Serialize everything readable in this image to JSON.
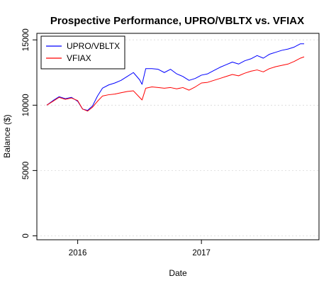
{
  "chart_data": {
    "type": "line",
    "title": "Prospective Performance, UPRO/VBLTX vs. VFIAX",
    "xlabel": "Date",
    "ylabel": "Balance ($)",
    "x_unit": "year",
    "xlim": [
      2015.67,
      2017.95
    ],
    "ylim": [
      -300,
      15500
    ],
    "x_ticks": [
      2016,
      2017
    ],
    "x_tick_labels": [
      "2016",
      "2017"
    ],
    "y_ticks": [
      0,
      5000,
      10000,
      15000
    ],
    "y_tick_labels": [
      "0",
      "5000",
      "10000",
      "15000"
    ],
    "grid": true,
    "legend_position": "top-left",
    "series": [
      {
        "name": "UPRO/VBLTX",
        "color": "#0000ff",
        "x": [
          2015.75,
          2015.8,
          2015.85,
          2015.9,
          2015.95,
          2016.0,
          2016.04,
          2016.08,
          2016.12,
          2016.16,
          2016.2,
          2016.25,
          2016.3,
          2016.35,
          2016.4,
          2016.45,
          2016.5,
          2016.52,
          2016.55,
          2016.6,
          2016.65,
          2016.7,
          2016.75,
          2016.8,
          2016.85,
          2016.9,
          2016.95,
          2017.0,
          2017.05,
          2017.1,
          2017.15,
          2017.2,
          2017.25,
          2017.3,
          2017.35,
          2017.4,
          2017.45,
          2017.5,
          2017.55,
          2017.6,
          2017.65,
          2017.7,
          2017.75,
          2017.8,
          2017.83
        ],
        "y": [
          10000,
          10350,
          10650,
          10500,
          10600,
          10300,
          9700,
          9600,
          9950,
          10700,
          11300,
          11550,
          11700,
          11900,
          12200,
          12500,
          11950,
          11600,
          12800,
          12800,
          12750,
          12500,
          12750,
          12400,
          12200,
          11900,
          12050,
          12300,
          12400,
          12650,
          12900,
          13100,
          13300,
          13150,
          13400,
          13550,
          13800,
          13600,
          13900,
          14050,
          14200,
          14300,
          14450,
          14700,
          14700
        ]
      },
      {
        "name": "VFIAX",
        "color": "#ff0000",
        "x": [
          2015.75,
          2015.8,
          2015.85,
          2015.9,
          2015.95,
          2016.0,
          2016.04,
          2016.08,
          2016.12,
          2016.16,
          2016.2,
          2016.25,
          2016.3,
          2016.35,
          2016.4,
          2016.45,
          2016.5,
          2016.52,
          2016.55,
          2016.6,
          2016.65,
          2016.7,
          2016.75,
          2016.8,
          2016.85,
          2016.9,
          2016.95,
          2017.0,
          2017.05,
          2017.1,
          2017.15,
          2017.2,
          2017.25,
          2017.3,
          2017.35,
          2017.4,
          2017.45,
          2017.5,
          2017.55,
          2017.6,
          2017.65,
          2017.7,
          2017.75,
          2017.8,
          2017.83
        ],
        "y": [
          10000,
          10300,
          10600,
          10450,
          10550,
          10350,
          9700,
          9550,
          9850,
          10300,
          10700,
          10800,
          10850,
          10950,
          11050,
          11100,
          10600,
          10400,
          11300,
          11400,
          11350,
          11300,
          11350,
          11250,
          11350,
          11150,
          11400,
          11700,
          11750,
          11900,
          12050,
          12200,
          12350,
          12250,
          12450,
          12600,
          12700,
          12550,
          12800,
          12950,
          13050,
          13150,
          13350,
          13600,
          13700
        ]
      }
    ]
  }
}
